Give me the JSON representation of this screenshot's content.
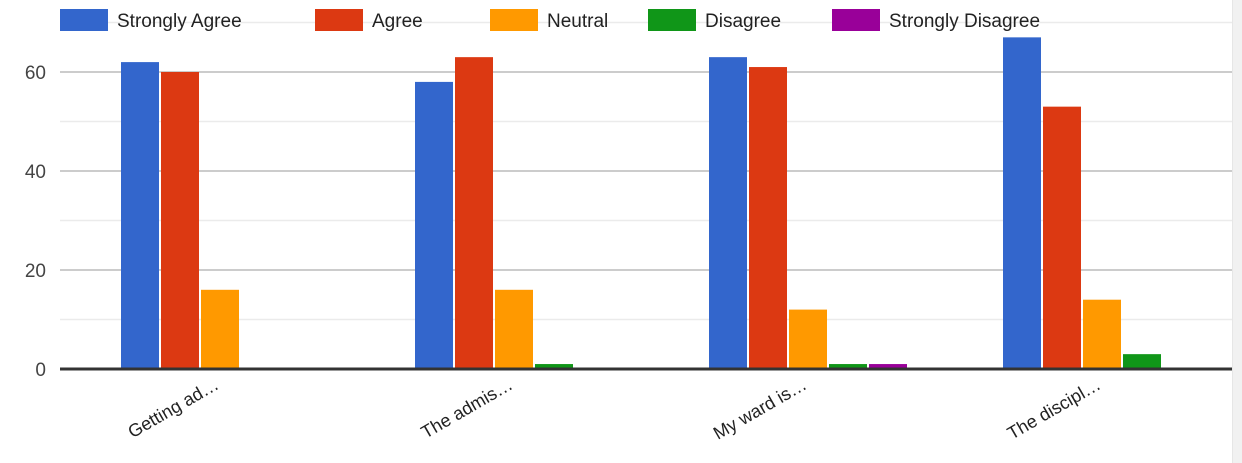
{
  "chart_data": {
    "type": "bar",
    "categories": [
      "Getting ad…",
      "The admis…",
      "My ward is…",
      "The discipl…"
    ],
    "series": [
      {
        "name": "Strongly Agree",
        "color": "#3366cc",
        "values": [
          62,
          58,
          63,
          67
        ]
      },
      {
        "name": "Agree",
        "color": "#dc3912",
        "values": [
          60,
          63,
          61,
          53
        ]
      },
      {
        "name": "Neutral",
        "color": "#ff9900",
        "values": [
          16,
          16,
          12,
          14
        ]
      },
      {
        "name": "Disagree",
        "color": "#109618",
        "values": [
          0,
          1,
          1,
          3
        ]
      },
      {
        "name": "Strongly Disagree",
        "color": "#990099",
        "values": [
          0,
          0,
          1,
          0
        ]
      }
    ],
    "yticks": [
      0,
      20,
      40,
      60
    ],
    "ylim": [
      0,
      70
    ],
    "grid": true,
    "legend_position": "top",
    "title": "",
    "xlabel": "",
    "ylabel": ""
  }
}
